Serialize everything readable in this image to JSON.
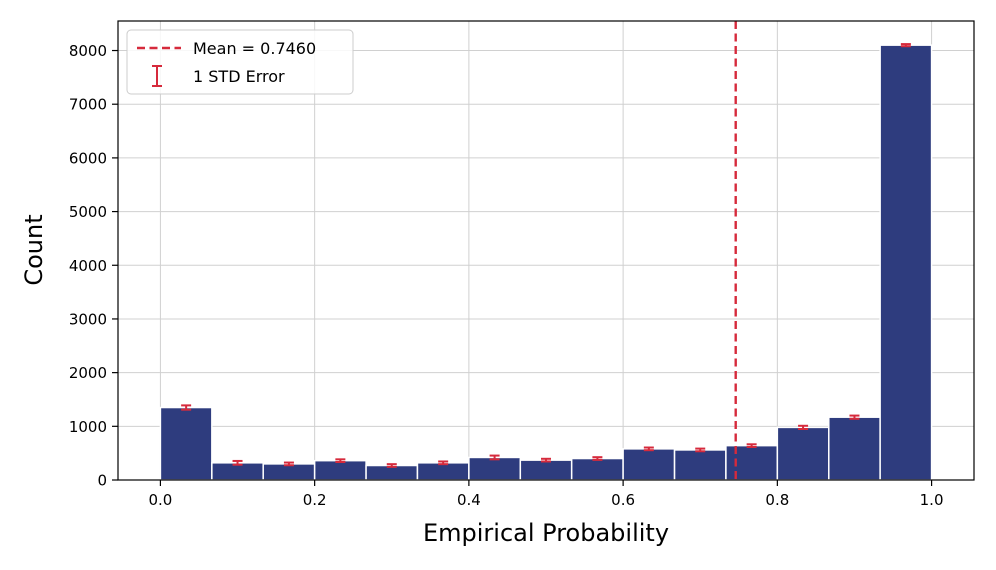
{
  "chart_data": {
    "type": "bar",
    "title": "",
    "xlabel": "Empirical Probability",
    "ylabel": "Count",
    "xlim": [
      -0.055,
      1.055
    ],
    "ylim": [
      0,
      8550
    ],
    "xticks": [
      "0.0",
      "0.2",
      "0.4",
      "0.6",
      "0.8",
      "1.0"
    ],
    "yticks": [
      "0",
      "1000",
      "2000",
      "3000",
      "4000",
      "5000",
      "6000",
      "7000",
      "8000"
    ],
    "grid": true,
    "legend_position": "top-left",
    "colors": {
      "bar": "#2e3c7e",
      "bar_edge": "#ffffff",
      "mean_line": "#d62a3c",
      "error_bar": "#d62a3c",
      "grid": "#d0d0d0"
    },
    "bin_edges": [
      0.0,
      0.0667,
      0.1333,
      0.2,
      0.2667,
      0.3333,
      0.4,
      0.4667,
      0.5333,
      0.6,
      0.6667,
      0.7333,
      0.8,
      0.8667,
      0.9333,
      1.0
    ],
    "values": [
      1350,
      320,
      300,
      360,
      270,
      320,
      420,
      370,
      400,
      580,
      560,
      640,
      980,
      1170,
      8100
    ],
    "errors": [
      40,
      35,
      25,
      25,
      25,
      25,
      35,
      25,
      25,
      25,
      25,
      25,
      30,
      30,
      20
    ],
    "mean": {
      "value": 0.746,
      "label": "Mean = 0.7460"
    },
    "error_label": "1 STD Error"
  }
}
